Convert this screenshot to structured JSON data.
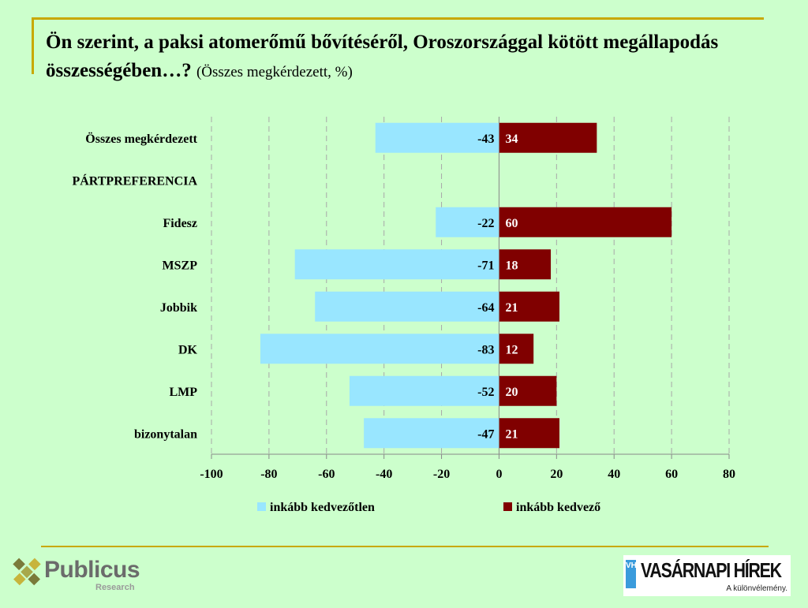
{
  "title": {
    "main": "Ön szerint, a paksi atomerőmű bővítéséről, Oroszországgal kötött megállapodás összességében…?",
    "sub": "(Összes megkérdezett, %)"
  },
  "colors": {
    "background": "#ccffcc",
    "negative": "#99e6ff",
    "positive": "#800000",
    "accent_rule": "#c8a800"
  },
  "chart_data": {
    "type": "bar",
    "orientation": "horizontal",
    "stacked": "diverging",
    "categories": [
      "Összes megkérdezett",
      "PÁRTPREFERENCIA",
      "Fidesz",
      "MSZP",
      "Jobbik",
      "DK",
      "LMP",
      "bizonytalan"
    ],
    "series": [
      {
        "name": "inkább kedvezőtlen",
        "color": "#99e6ff",
        "values": [
          -43,
          null,
          -22,
          -71,
          -64,
          -83,
          -52,
          -47
        ]
      },
      {
        "name": "inkább kedvező",
        "color": "#800000",
        "values": [
          34,
          null,
          60,
          18,
          21,
          12,
          20,
          21
        ]
      }
    ],
    "xlim": [
      -100,
      80
    ],
    "xticks": [
      -100,
      -80,
      -60,
      -40,
      -20,
      0,
      20,
      40,
      60,
      80
    ],
    "grid": "vertical dashed",
    "legend": "bottom"
  },
  "logos": {
    "publicus_name": "Publicus",
    "publicus_sub": "Research",
    "vh_mark": "VH",
    "vh_name": "VASÁRNAPI HÍREK",
    "vh_tag": "A különvélemény."
  }
}
